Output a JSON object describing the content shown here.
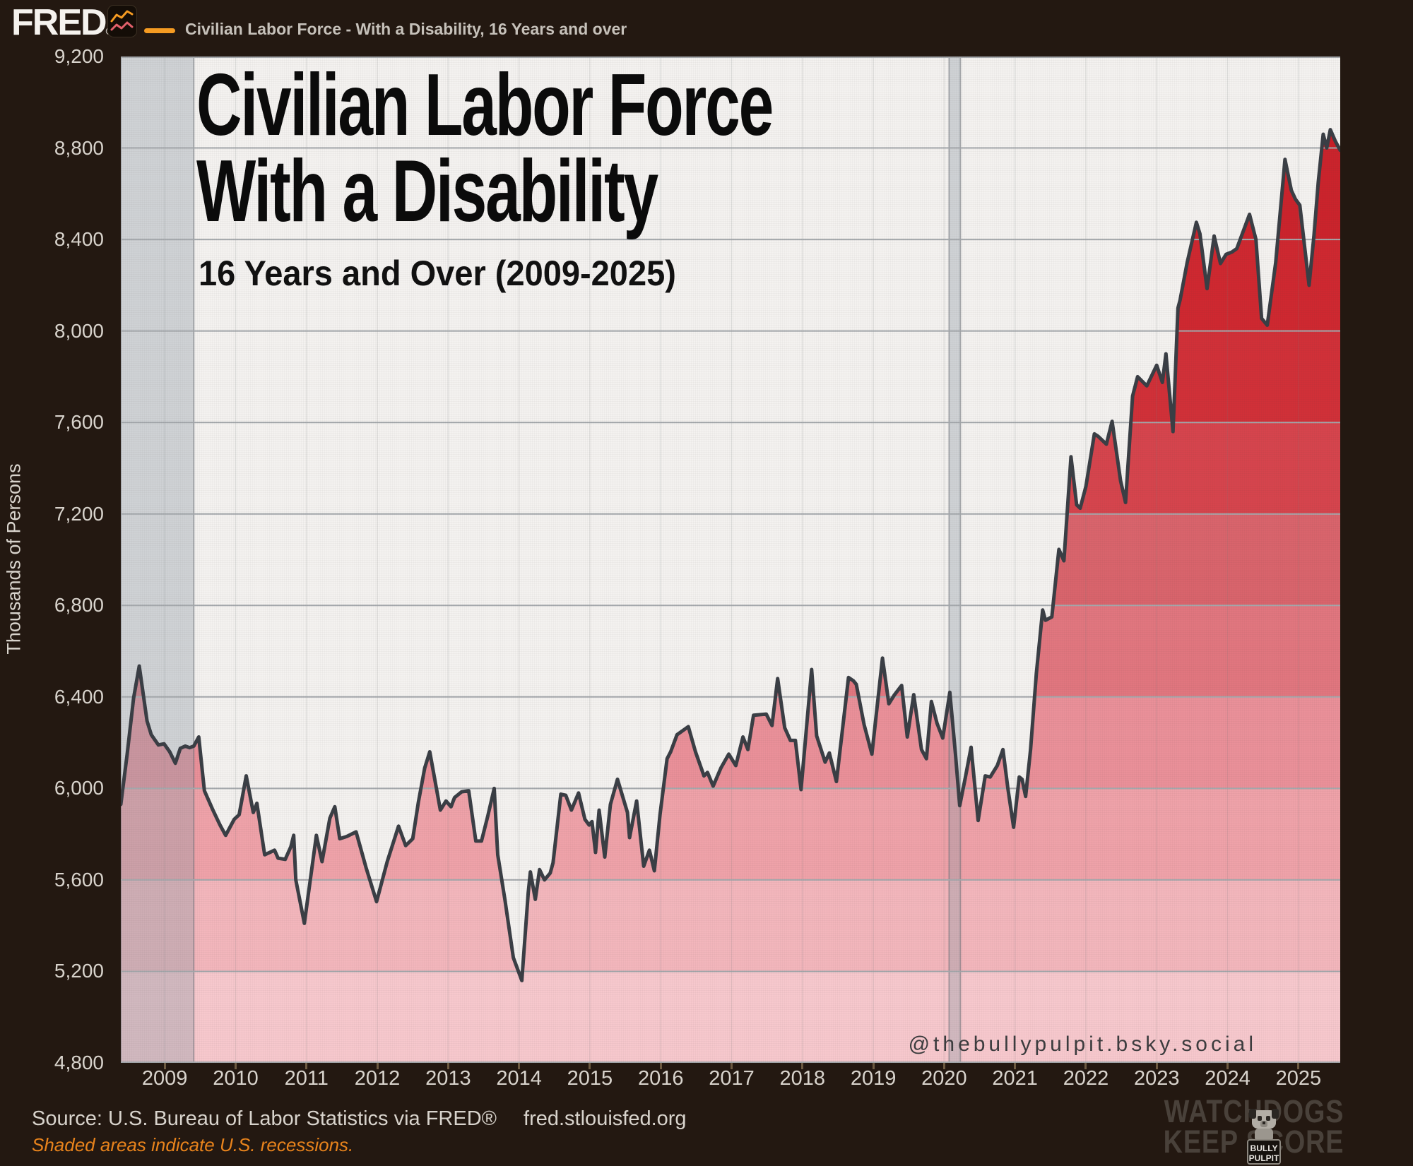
{
  "header": {
    "logo": "FRED",
    "logo_reg": "®",
    "series_label": "Civilian Labor Force - With a Disability, 16 Years and over",
    "accent_orange": "#f59b22"
  },
  "chart": {
    "title_line1": "Civilian Labor Force",
    "title_line2": "With a Disability",
    "watermark": "@thebullypulpit.bsky.social"
  },
  "footer": {
    "source": "Source: U.S. Bureau of Labor Statistics via FRED®",
    "site": "fred.stlouisfed.org",
    "recession_note": "Shaded areas indicate U.S. recessions.",
    "badge_line1": "WATCHDOGS",
    "badge_line2": "KEEP SCORE",
    "badge_sub1": "BULLY",
    "badge_sub2": "PULPIT"
  },
  "chart_data": {
    "type": "area",
    "title": "Civilian Labor Force With a Disability",
    "subtitle": "16 Years and Over (2009-2025)",
    "xlabel": "",
    "ylabel": "Thousands of Persons",
    "ylim": [
      4800,
      9200
    ],
    "ytick_step": 400,
    "x_range": [
      2008.38,
      2025.59
    ],
    "xticks": [
      2009,
      2010,
      2011,
      2012,
      2013,
      2014,
      2015,
      2016,
      2017,
      2018,
      2019,
      2020,
      2021,
      2022,
      2023,
      2024,
      2025
    ],
    "grid": true,
    "legend_position": "none",
    "line_color": "#3a3e45",
    "gridline_color": "#a4a8ac",
    "plot_bg": "#f4f2f0",
    "recession_fill": "rgba(148,157,168,0.38)",
    "recession_edge": "rgba(105,110,118,0.5)",
    "band_colors": [
      "#c81e27",
      "#cb232c",
      "#cf2830",
      "#d13038",
      "#d6444d",
      "#d9646c",
      "#e1767f",
      "#ea9099",
      "#efa2a9",
      "#f3b6bc",
      "#f7c8cd"
    ],
    "recessions": [
      {
        "start": 2008.38,
        "end": 2009.41
      },
      {
        "start": 2020.07,
        "end": 2020.23
      }
    ],
    "series_name": "Civilian Labor Force - With a Disability, 16 Years and over",
    "series": [
      [
        2008.38,
        5930
      ],
      [
        2008.47,
        6150
      ],
      [
        2008.56,
        6395
      ],
      [
        2008.64,
        6535
      ],
      [
        2008.75,
        6295
      ],
      [
        2008.81,
        6235
      ],
      [
        2008.91,
        6190
      ],
      [
        2008.99,
        6195
      ],
      [
        2009.07,
        6160
      ],
      [
        2009.15,
        6110
      ],
      [
        2009.22,
        6175
      ],
      [
        2009.29,
        6185
      ],
      [
        2009.35,
        6178
      ],
      [
        2009.41,
        6185
      ],
      [
        2009.48,
        6225
      ],
      [
        2009.56,
        5990
      ],
      [
        2009.68,
        5905
      ],
      [
        2009.78,
        5840
      ],
      [
        2009.86,
        5795
      ],
      [
        2009.98,
        5865
      ],
      [
        2010.05,
        5885
      ],
      [
        2010.15,
        6055
      ],
      [
        2010.25,
        5895
      ],
      [
        2010.3,
        5935
      ],
      [
        2010.41,
        5710
      ],
      [
        2010.55,
        5730
      ],
      [
        2010.6,
        5695
      ],
      [
        2010.7,
        5690
      ],
      [
        2010.78,
        5745
      ],
      [
        2010.82,
        5795
      ],
      [
        2010.85,
        5600
      ],
      [
        2010.97,
        5410
      ],
      [
        2011.14,
        5795
      ],
      [
        2011.22,
        5680
      ],
      [
        2011.33,
        5870
      ],
      [
        2011.4,
        5920
      ],
      [
        2011.47,
        5780
      ],
      [
        2011.57,
        5790
      ],
      [
        2011.7,
        5810
      ],
      [
        2011.84,
        5655
      ],
      [
        2011.99,
        5505
      ],
      [
        2012.14,
        5680
      ],
      [
        2012.3,
        5835
      ],
      [
        2012.4,
        5750
      ],
      [
        2012.5,
        5780
      ],
      [
        2012.58,
        5940
      ],
      [
        2012.67,
        6090
      ],
      [
        2012.74,
        6160
      ],
      [
        2012.89,
        5905
      ],
      [
        2012.97,
        5945
      ],
      [
        2013.04,
        5920
      ],
      [
        2013.09,
        5960
      ],
      [
        2013.19,
        5985
      ],
      [
        2013.29,
        5990
      ],
      [
        2013.39,
        5770
      ],
      [
        2013.47,
        5770
      ],
      [
        2013.56,
        5880
      ],
      [
        2013.65,
        6000
      ],
      [
        2013.7,
        5710
      ],
      [
        2013.8,
        5515
      ],
      [
        2013.92,
        5260
      ],
      [
        2014.04,
        5160
      ],
      [
        2014.13,
        5545
      ],
      [
        2014.16,
        5635
      ],
      [
        2014.23,
        5515
      ],
      [
        2014.29,
        5645
      ],
      [
        2014.36,
        5600
      ],
      [
        2014.44,
        5630
      ],
      [
        2014.48,
        5675
      ],
      [
        2014.59,
        5975
      ],
      [
        2014.66,
        5970
      ],
      [
        2014.74,
        5905
      ],
      [
        2014.84,
        5980
      ],
      [
        2014.93,
        5865
      ],
      [
        2014.99,
        5840
      ],
      [
        2015.03,
        5855
      ],
      [
        2015.08,
        5720
      ],
      [
        2015.13,
        5905
      ],
      [
        2015.21,
        5700
      ],
      [
        2015.29,
        5930
      ],
      [
        2015.39,
        6040
      ],
      [
        2015.53,
        5895
      ],
      [
        2015.56,
        5785
      ],
      [
        2015.66,
        5945
      ],
      [
        2015.76,
        5660
      ],
      [
        2015.84,
        5730
      ],
      [
        2015.91,
        5640
      ],
      [
        2015.99,
        5885
      ],
      [
        2016.09,
        6130
      ],
      [
        2016.14,
        6160
      ],
      [
        2016.23,
        6235
      ],
      [
        2016.39,
        6270
      ],
      [
        2016.49,
        6160
      ],
      [
        2016.61,
        6055
      ],
      [
        2016.66,
        6070
      ],
      [
        2016.74,
        6010
      ],
      [
        2016.85,
        6090
      ],
      [
        2016.96,
        6150
      ],
      [
        2017.06,
        6100
      ],
      [
        2017.16,
        6225
      ],
      [
        2017.23,
        6170
      ],
      [
        2017.31,
        6320
      ],
      [
        2017.49,
        6325
      ],
      [
        2017.57,
        6275
      ],
      [
        2017.65,
        6480
      ],
      [
        2017.75,
        6265
      ],
      [
        2017.83,
        6210
      ],
      [
        2017.9,
        6210
      ],
      [
        2017.98,
        5995
      ],
      [
        2018.13,
        6520
      ],
      [
        2018.2,
        6230
      ],
      [
        2018.32,
        6115
      ],
      [
        2018.38,
        6155
      ],
      [
        2018.48,
        6030
      ],
      [
        2018.65,
        6485
      ],
      [
        2018.72,
        6470
      ],
      [
        2018.76,
        6455
      ],
      [
        2018.87,
        6280
      ],
      [
        2018.98,
        6150
      ],
      [
        2019.13,
        6570
      ],
      [
        2019.22,
        6370
      ],
      [
        2019.3,
        6410
      ],
      [
        2019.4,
        6450
      ],
      [
        2019.48,
        6225
      ],
      [
        2019.57,
        6410
      ],
      [
        2019.68,
        6170
      ],
      [
        2019.75,
        6130
      ],
      [
        2019.82,
        6380
      ],
      [
        2019.9,
        6285
      ],
      [
        2019.98,
        6220
      ],
      [
        2020.08,
        6420
      ],
      [
        2020.16,
        6150
      ],
      [
        2020.22,
        5925
      ],
      [
        2020.3,
        6050
      ],
      [
        2020.38,
        6180
      ],
      [
        2020.48,
        5860
      ],
      [
        2020.58,
        6055
      ],
      [
        2020.65,
        6050
      ],
      [
        2020.75,
        6100
      ],
      [
        2020.83,
        6170
      ],
      [
        2020.9,
        6000
      ],
      [
        2020.98,
        5830
      ],
      [
        2021.06,
        6050
      ],
      [
        2021.1,
        6040
      ],
      [
        2021.15,
        5965
      ],
      [
        2021.22,
        6170
      ],
      [
        2021.3,
        6500
      ],
      [
        2021.39,
        6780
      ],
      [
        2021.43,
        6735
      ],
      [
        2021.52,
        6750
      ],
      [
        2021.62,
        7045
      ],
      [
        2021.69,
        6995
      ],
      [
        2021.79,
        7450
      ],
      [
        2021.87,
        7240
      ],
      [
        2021.92,
        7225
      ],
      [
        2022.0,
        7320
      ],
      [
        2022.12,
        7550
      ],
      [
        2022.17,
        7540
      ],
      [
        2022.29,
        7505
      ],
      [
        2022.37,
        7605
      ],
      [
        2022.49,
        7345
      ],
      [
        2022.56,
        7250
      ],
      [
        2022.66,
        7715
      ],
      [
        2022.73,
        7800
      ],
      [
        2022.86,
        7760
      ],
      [
        2023.0,
        7850
      ],
      [
        2023.08,
        7775
      ],
      [
        2023.13,
        7900
      ],
      [
        2023.23,
        7560
      ],
      [
        2023.3,
        8100
      ],
      [
        2023.33,
        8135
      ],
      [
        2023.43,
        8300
      ],
      [
        2023.56,
        8475
      ],
      [
        2023.61,
        8425
      ],
      [
        2023.71,
        8185
      ],
      [
        2023.81,
        8415
      ],
      [
        2023.9,
        8295
      ],
      [
        2023.98,
        8335
      ],
      [
        2024.06,
        8345
      ],
      [
        2024.13,
        8360
      ],
      [
        2024.31,
        8510
      ],
      [
        2024.4,
        8400
      ],
      [
        2024.48,
        8055
      ],
      [
        2024.56,
        8025
      ],
      [
        2024.68,
        8300
      ],
      [
        2024.81,
        8750
      ],
      [
        2024.9,
        8615
      ],
      [
        2024.96,
        8575
      ],
      [
        2025.02,
        8550
      ],
      [
        2025.15,
        8200
      ],
      [
        2025.22,
        8420
      ],
      [
        2025.28,
        8650
      ],
      [
        2025.35,
        8860
      ],
      [
        2025.4,
        8800
      ],
      [
        2025.45,
        8880
      ],
      [
        2025.52,
        8830
      ],
      [
        2025.59,
        8790
      ]
    ]
  }
}
